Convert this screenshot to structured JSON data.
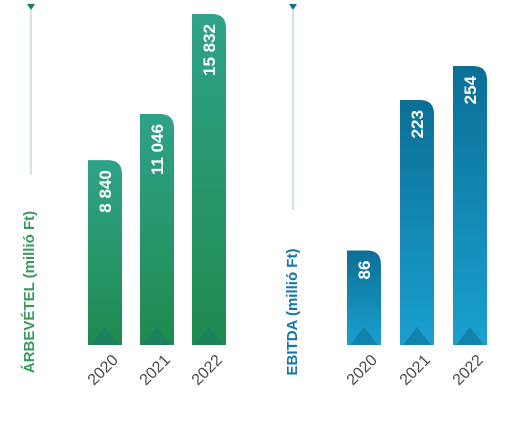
{
  "chart_data": [
    {
      "type": "bar",
      "ylabel": "ÁRBEVÉTEL (millió Ft)",
      "categories": [
        "2020",
        "2021",
        "2022"
      ],
      "values": [
        8840,
        11046,
        15832
      ],
      "value_labels": [
        "8 840",
        "11 046",
        "15 832"
      ],
      "colors": {
        "top": "#2fa38a",
        "bottom": "#1f8a4e",
        "title": "#3a9a5b",
        "accent": "#1a7a6a"
      }
    },
    {
      "type": "bar",
      "ylabel": "EBITDA (millió Ft)",
      "categories": [
        "2020",
        "2021",
        "2022"
      ],
      "values": [
        86,
        223,
        254
      ],
      "value_labels": [
        "86",
        "223",
        "254"
      ],
      "colors": {
        "top": "#0b6f96",
        "bottom": "#1aa0cf",
        "title": "#1677a0",
        "accent": "#0d6e90"
      }
    }
  ]
}
